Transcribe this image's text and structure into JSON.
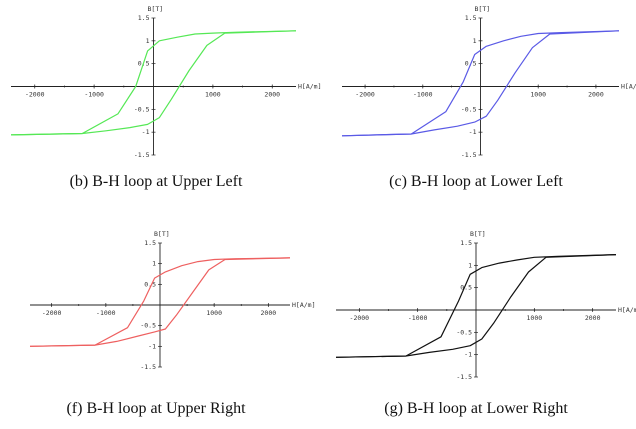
{
  "chart_data": [
    {
      "type": "line",
      "title": "(b) B-H loop at Upper Left",
      "xlabel": "H[A/m]",
      "ylabel": "B[T]",
      "xlim": [
        -2400,
        2400
      ],
      "ylim": [
        -1.5,
        1.5
      ],
      "xticks": [
        {
          "v": -2000,
          "label": "-2000"
        },
        {
          "v": -1000,
          "label": "-1000"
        },
        {
          "v": 1000,
          "label": "1000"
        },
        {
          "v": 2000,
          "label": "2000"
        }
      ],
      "yticks": [
        {
          "v": 1.5,
          "label": "1.5"
        },
        {
          "v": 1,
          "label": "1"
        },
        {
          "v": 0.5,
          "label": "0.5"
        },
        {
          "v": -0.5,
          "label": "-0.5"
        },
        {
          "v": -1,
          "label": "-1"
        },
        {
          "v": -1.5,
          "label": "-1.5"
        }
      ],
      "color": "#55e855",
      "series": [
        {
          "x": [
            -2400,
            -1200,
            -600,
            -300,
            -100,
            100,
            400,
            700,
            1000,
            1400,
            2400
          ],
          "y": [
            -1.06,
            -1.03,
            -0.6,
            0.0,
            0.78,
            1.0,
            1.08,
            1.15,
            1.17,
            1.19,
            1.22
          ]
        },
        {
          "x": [
            2400,
            1200,
            900,
            600,
            300,
            100,
            -100,
            -400,
            -800,
            -1200,
            -2400
          ],
          "y": [
            1.22,
            1.17,
            0.9,
            0.35,
            -0.28,
            -0.68,
            -0.83,
            -0.9,
            -0.97,
            -1.03,
            -1.06
          ]
        }
      ]
    },
    {
      "type": "line",
      "title": "(c) B-H loop at Lower Left",
      "xlabel": "H[A/m]",
      "ylabel": "B[T]",
      "xlim": [
        -2400,
        2400
      ],
      "ylim": [
        -1.5,
        1.5
      ],
      "xticks": [
        {
          "v": -2000,
          "label": "-2000"
        },
        {
          "v": -1000,
          "label": "-1000"
        },
        {
          "v": 1000,
          "label": "1000"
        },
        {
          "v": 2000,
          "label": "2000"
        }
      ],
      "yticks": [
        {
          "v": 1.5,
          "label": "1.5"
        },
        {
          "v": 1,
          "label": "1"
        },
        {
          "v": 0.5,
          "label": "0.5"
        },
        {
          "v": -0.5,
          "label": "-0.5"
        },
        {
          "v": -1,
          "label": "-1"
        },
        {
          "v": -1.5,
          "label": "-1.5"
        }
      ],
      "color": "#5a5ae6",
      "series": [
        {
          "x": [
            -2400,
            -1200,
            -600,
            -300,
            -100,
            100,
            400,
            700,
            1000,
            1400,
            2400
          ],
          "y": [
            -1.08,
            -1.04,
            -0.55,
            0.1,
            0.7,
            0.88,
            1.0,
            1.1,
            1.16,
            1.18,
            1.22
          ]
        },
        {
          "x": [
            2400,
            1200,
            900,
            600,
            300,
            100,
            -100,
            -400,
            -800,
            -1200,
            -2400
          ],
          "y": [
            1.22,
            1.15,
            0.85,
            0.3,
            -0.3,
            -0.65,
            -0.78,
            -0.87,
            -0.95,
            -1.04,
            -1.08
          ]
        }
      ]
    },
    {
      "type": "line",
      "title": "(f) B-H loop at Upper Right",
      "xlabel": "H[A/m]",
      "ylabel": "B[T]",
      "xlim": [
        -2400,
        2400
      ],
      "ylim": [
        -1.5,
        1.5
      ],
      "xticks": [
        {
          "v": -2000,
          "label": "-2000"
        },
        {
          "v": -1000,
          "label": "-1000"
        },
        {
          "v": 1000,
          "label": "1000"
        },
        {
          "v": 2000,
          "label": "2000"
        }
      ],
      "yticks": [
        {
          "v": 1.5,
          "label": "1.5"
        },
        {
          "v": 1,
          "label": "1"
        },
        {
          "v": 0.5,
          "label": "0.5"
        },
        {
          "v": -0.5,
          "label": "-0.5"
        },
        {
          "v": -1,
          "label": "-1"
        },
        {
          "v": -1.5,
          "label": "-1.5"
        }
      ],
      "color": "#ee6060",
      "series": [
        {
          "x": [
            -2400,
            -1200,
            -600,
            -300,
            -100,
            100,
            400,
            700,
            1000,
            1400,
            2400
          ],
          "y": [
            -1.0,
            -0.97,
            -0.55,
            0.1,
            0.65,
            0.8,
            0.95,
            1.05,
            1.1,
            1.12,
            1.14
          ]
        },
        {
          "x": [
            2400,
            1200,
            900,
            600,
            300,
            100,
            -100,
            -400,
            -800,
            -1200,
            -2400
          ],
          "y": [
            1.14,
            1.1,
            0.85,
            0.3,
            -0.25,
            -0.58,
            -0.65,
            -0.75,
            -0.88,
            -0.97,
            -1.0
          ]
        }
      ]
    },
    {
      "type": "line",
      "title": "(g) B-H loop at Lower Right",
      "xlabel": "H[A/m]",
      "ylabel": "B[T]",
      "xlim": [
        -2400,
        2400
      ],
      "ylim": [
        -1.5,
        1.5
      ],
      "xticks": [
        {
          "v": -2000,
          "label": "-2000"
        },
        {
          "v": -1000,
          "label": "-1000"
        },
        {
          "v": 1000,
          "label": "1000"
        },
        {
          "v": 2000,
          "label": "2000"
        }
      ],
      "yticks": [
        {
          "v": 1.5,
          "label": "1.5"
        },
        {
          "v": 1,
          "label": "1"
        },
        {
          "v": 0.5,
          "label": "0.5"
        },
        {
          "v": -0.5,
          "label": "-0.5"
        },
        {
          "v": -1,
          "label": "-1"
        },
        {
          "v": -1.5,
          "label": "-1.5"
        }
      ],
      "color": "#111111",
      "series": [
        {
          "x": [
            -2400,
            -1200,
            -600,
            -300,
            -100,
            100,
            400,
            700,
            1000,
            1400,
            2400
          ],
          "y": [
            -1.06,
            -1.03,
            -0.6,
            0.2,
            0.8,
            0.95,
            1.05,
            1.12,
            1.18,
            1.2,
            1.24
          ]
        },
        {
          "x": [
            2400,
            1200,
            900,
            600,
            300,
            100,
            -100,
            -400,
            -800,
            -1200,
            -2400
          ],
          "y": [
            1.24,
            1.18,
            0.85,
            0.3,
            -0.3,
            -0.65,
            -0.8,
            -0.88,
            -0.95,
            -1.03,
            -1.06
          ]
        }
      ]
    }
  ]
}
